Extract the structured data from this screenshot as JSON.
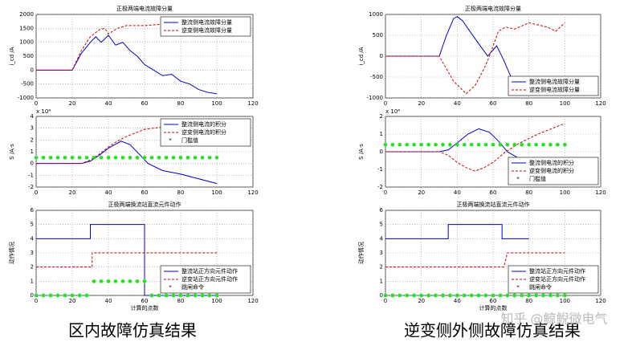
{
  "chart_data": [
    {
      "type": "line",
      "title": "正极两端电流故障分量",
      "ylabel": "i_cd /A",
      "xlim": [
        0,
        120
      ],
      "xticks": [
        0,
        20,
        40,
        60,
        80,
        100,
        120
      ],
      "ylim": [
        -1000,
        2000
      ],
      "yticks": [
        -1000,
        -500,
        0,
        500,
        1000,
        1500,
        2000
      ],
      "legend": "upper right",
      "series": [
        {
          "name": "整流侧电流故障分量",
          "color": "#0000cc",
          "dash": "solid",
          "x": [
            0,
            10,
            20,
            25,
            30,
            33,
            36,
            40,
            44,
            48,
            52,
            56,
            60,
            65,
            70,
            75,
            80,
            85,
            90,
            95,
            100
          ],
          "values": [
            0,
            0,
            0,
            600,
            1000,
            1200,
            1000,
            1250,
            900,
            1000,
            700,
            500,
            200,
            0,
            -200,
            -150,
            -400,
            -500,
            -700,
            -800,
            -850
          ]
        },
        {
          "name": "逆变侧电流故障分量",
          "color": "#cc0000",
          "dash": "dashed",
          "x": [
            0,
            10,
            20,
            25,
            30,
            35,
            38,
            40,
            45,
            50,
            60,
            70,
            80,
            90,
            100
          ],
          "values": [
            0,
            0,
            0,
            700,
            1200,
            1450,
            1500,
            1300,
            1500,
            1600,
            1600,
            1650,
            1600,
            1550,
            1450
          ]
        }
      ]
    },
    {
      "type": "line",
      "ylabel": "S /A·s",
      "exponent": "x 10⁴",
      "xlim": [
        0,
        120
      ],
      "xticks": [
        0,
        20,
        40,
        60,
        80,
        100,
        120
      ],
      "ylim": [
        -2,
        4
      ],
      "yticks": [
        -2,
        -1,
        0,
        1,
        2,
        3,
        4
      ],
      "legend": "upper right",
      "series": [
        {
          "name": "整流侧电流的积分",
          "color": "#0000cc",
          "dash": "solid",
          "x": [
            0,
            25,
            30,
            35,
            40,
            47,
            52,
            57,
            62,
            70,
            80,
            90,
            100
          ],
          "values": [
            0,
            0,
            0.2,
            0.7,
            1.3,
            1.9,
            1.6,
            0.8,
            0,
            -0.6,
            -0.9,
            -1.3,
            -1.7
          ]
        },
        {
          "name": "逆变侧电流的积分",
          "color": "#cc0000",
          "dash": "dashed",
          "x": [
            0,
            25,
            30,
            35,
            40,
            45,
            50,
            55,
            60,
            70,
            80,
            90,
            100
          ],
          "values": [
            0,
            0,
            0.3,
            0.8,
            1.4,
            1.9,
            2.3,
            2.6,
            2.9,
            3.1,
            3.2,
            3.1,
            3.1
          ]
        },
        {
          "name": "门槛值",
          "color": "#22dd22",
          "marker": "*",
          "x": [
            0,
            4,
            8,
            12,
            16,
            20,
            24,
            28,
            32,
            36,
            40,
            44,
            48,
            52,
            56,
            60,
            64,
            68,
            72,
            76,
            80,
            84,
            88,
            92,
            96,
            100
          ],
          "values": [
            0.5,
            0.5,
            0.5,
            0.5,
            0.5,
            0.5,
            0.5,
            0.5,
            0.5,
            0.5,
            0.5,
            0.5,
            0.5,
            0.5,
            0.5,
            0.5,
            0.5,
            0.5,
            0.5,
            0.5,
            0.5,
            0.5,
            0.5,
            0.5,
            0.5,
            0.5
          ]
        }
      ]
    },
    {
      "type": "line",
      "title": "正极两端换流站直流元件动作",
      "ylabel": "动作情况",
      "xlabel": "计算的点数",
      "xlim": [
        0,
        120
      ],
      "xticks": [
        0,
        20,
        40,
        60,
        80,
        100,
        120
      ],
      "ylim": [
        0,
        6
      ],
      "yticks": [
        0,
        1,
        2,
        3,
        4,
        5,
        6
      ],
      "legend": "lower right",
      "series": [
        {
          "name": "整流站正方向元件动作",
          "color": "#0000cc",
          "dash": "solid",
          "x": [
            0,
            30,
            30,
            60,
            60,
            100
          ],
          "values": [
            4,
            4,
            5,
            5,
            0,
            0
          ]
        },
        {
          "name": "逆变站正方向元件动作",
          "color": "#cc0000",
          "dash": "dashed",
          "x": [
            0,
            31,
            31,
            100
          ],
          "values": [
            2,
            2,
            3,
            3
          ]
        },
        {
          "name": "跳闸命令",
          "color": "#22dd22",
          "marker": "*",
          "x": [
            0,
            4,
            8,
            12,
            16,
            20,
            24,
            28,
            32,
            36,
            40,
            44,
            48,
            52,
            56,
            60,
            64,
            68,
            72,
            76,
            80,
            84,
            88,
            92,
            96,
            100
          ],
          "values": [
            0,
            0,
            0,
            0,
            0,
            0,
            0,
            0,
            1,
            1,
            1,
            1,
            1,
            1,
            1,
            1,
            0,
            0,
            0,
            0,
            0,
            0,
            0,
            0,
            0,
            0
          ]
        }
      ]
    },
    {
      "type": "line",
      "title": "正极两端电流故障分量",
      "ylabel": "i_cd /A",
      "xlim": [
        0,
        120
      ],
      "xticks": [
        0,
        20,
        40,
        60,
        80,
        100,
        120
      ],
      "ylim": [
        -1000,
        1000
      ],
      "yticks": [
        -1000,
        -500,
        0,
        500,
        1000
      ],
      "legend": "lower right",
      "series": [
        {
          "name": "整流侧电流故障分量",
          "color": "#0000cc",
          "dash": "solid",
          "x": [
            0,
            20,
            30,
            34,
            38,
            40,
            43,
            47,
            52,
            57,
            62,
            66,
            70,
            75,
            80
          ],
          "values": [
            0,
            0,
            0,
            500,
            900,
            950,
            850,
            600,
            300,
            0,
            250,
            -100,
            -500,
            -550,
            -600
          ]
        },
        {
          "name": "逆变侧电流故障分量",
          "color": "#cc0000",
          "dash": "dashed",
          "x": [
            0,
            20,
            30,
            34,
            38,
            45,
            50,
            55,
            58,
            63,
            67,
            72,
            80,
            90,
            95,
            100
          ],
          "values": [
            0,
            0,
            0,
            -300,
            -600,
            -900,
            -700,
            -300,
            0,
            600,
            700,
            650,
            800,
            700,
            600,
            800
          ]
        }
      ]
    },
    {
      "type": "line",
      "ylabel": "S /A·s",
      "exponent": "x 10⁴",
      "xlim": [
        0,
        120
      ],
      "xticks": [
        0,
        20,
        40,
        60,
        80,
        100,
        120
      ],
      "ylim": [
        -2,
        2
      ],
      "yticks": [
        -2,
        -1,
        0,
        1,
        2
      ],
      "legend": "lower right",
      "series": [
        {
          "name": "整流侧电流的积分",
          "color": "#0000cc",
          "dash": "solid",
          "x": [
            0,
            30,
            35,
            40,
            46,
            52,
            58,
            63,
            68,
            73,
            78
          ],
          "values": [
            0,
            0,
            0.1,
            0.5,
            1.0,
            1.3,
            1.1,
            0.6,
            0,
            -0.3,
            -0.6
          ]
        },
        {
          "name": "逆变侧电流的积分",
          "color": "#cc0000",
          "dash": "dashed",
          "x": [
            0,
            30,
            35,
            40,
            45,
            50,
            55,
            60,
            67,
            75,
            85,
            95,
            100
          ],
          "values": [
            0,
            0,
            -0.2,
            -0.6,
            -0.9,
            -1.1,
            -0.9,
            -0.6,
            0,
            0.5,
            1.0,
            1.4,
            1.6
          ]
        },
        {
          "name": "门槛值",
          "color": "#22dd22",
          "marker": "*",
          "x": [
            0,
            4,
            8,
            12,
            16,
            20,
            24,
            28,
            32,
            36,
            40,
            44,
            48,
            52,
            56,
            60,
            64,
            68,
            72,
            76,
            80,
            84,
            88,
            92,
            96,
            100
          ],
          "values": [
            0.4,
            0.4,
            0.4,
            0.4,
            0.4,
            0.4,
            0.4,
            0.4,
            0.4,
            0.4,
            0.4,
            0.4,
            0.4,
            0.4,
            0.4,
            0.4,
            0.4,
            0.4,
            0.4,
            0.4,
            0.4,
            0.4,
            0.4,
            0.4,
            0.4,
            0.4
          ]
        }
      ]
    },
    {
      "type": "line",
      "title": "正极两端换流站直流元件动作",
      "ylabel": "动作情况",
      "xlabel": "计算的点数",
      "xlim": [
        0,
        120
      ],
      "xticks": [
        0,
        20,
        40,
        60,
        80,
        100,
        120
      ],
      "ylim": [
        0,
        6
      ],
      "yticks": [
        0,
        1,
        2,
        3,
        4,
        5,
        6
      ],
      "legend": "lower right",
      "series": [
        {
          "name": "整流站正方向元件动作",
          "color": "#0000cc",
          "dash": "solid",
          "x": [
            0,
            35,
            35,
            65,
            65,
            80
          ],
          "values": [
            4,
            4,
            5,
            5,
            4,
            4
          ]
        },
        {
          "name": "逆变站正方向元件动作",
          "color": "#cc0000",
          "dash": "dashed",
          "x": [
            0,
            66,
            68,
            100
          ],
          "values": [
            2,
            2,
            3,
            3
          ]
        },
        {
          "name": "跳闸命令",
          "color": "#22dd22",
          "marker": "*",
          "x": [
            0,
            4,
            8,
            12,
            16,
            20,
            24,
            28,
            32,
            36,
            40,
            44,
            48,
            52,
            56,
            60,
            64,
            68,
            72,
            76,
            80,
            84,
            88,
            92,
            96,
            100
          ],
          "values": [
            0,
            0,
            0,
            0,
            0,
            0,
            0,
            0,
            0,
            0,
            0,
            0,
            0,
            0,
            0,
            0,
            0,
            0,
            0,
            0,
            0,
            0,
            0,
            0,
            0,
            0
          ]
        }
      ]
    }
  ],
  "captions": [
    "区内故障仿真结果",
    "逆变侧外侧故障仿真结果"
  ],
  "watermark": "知乎 @鲸鲵微电气"
}
